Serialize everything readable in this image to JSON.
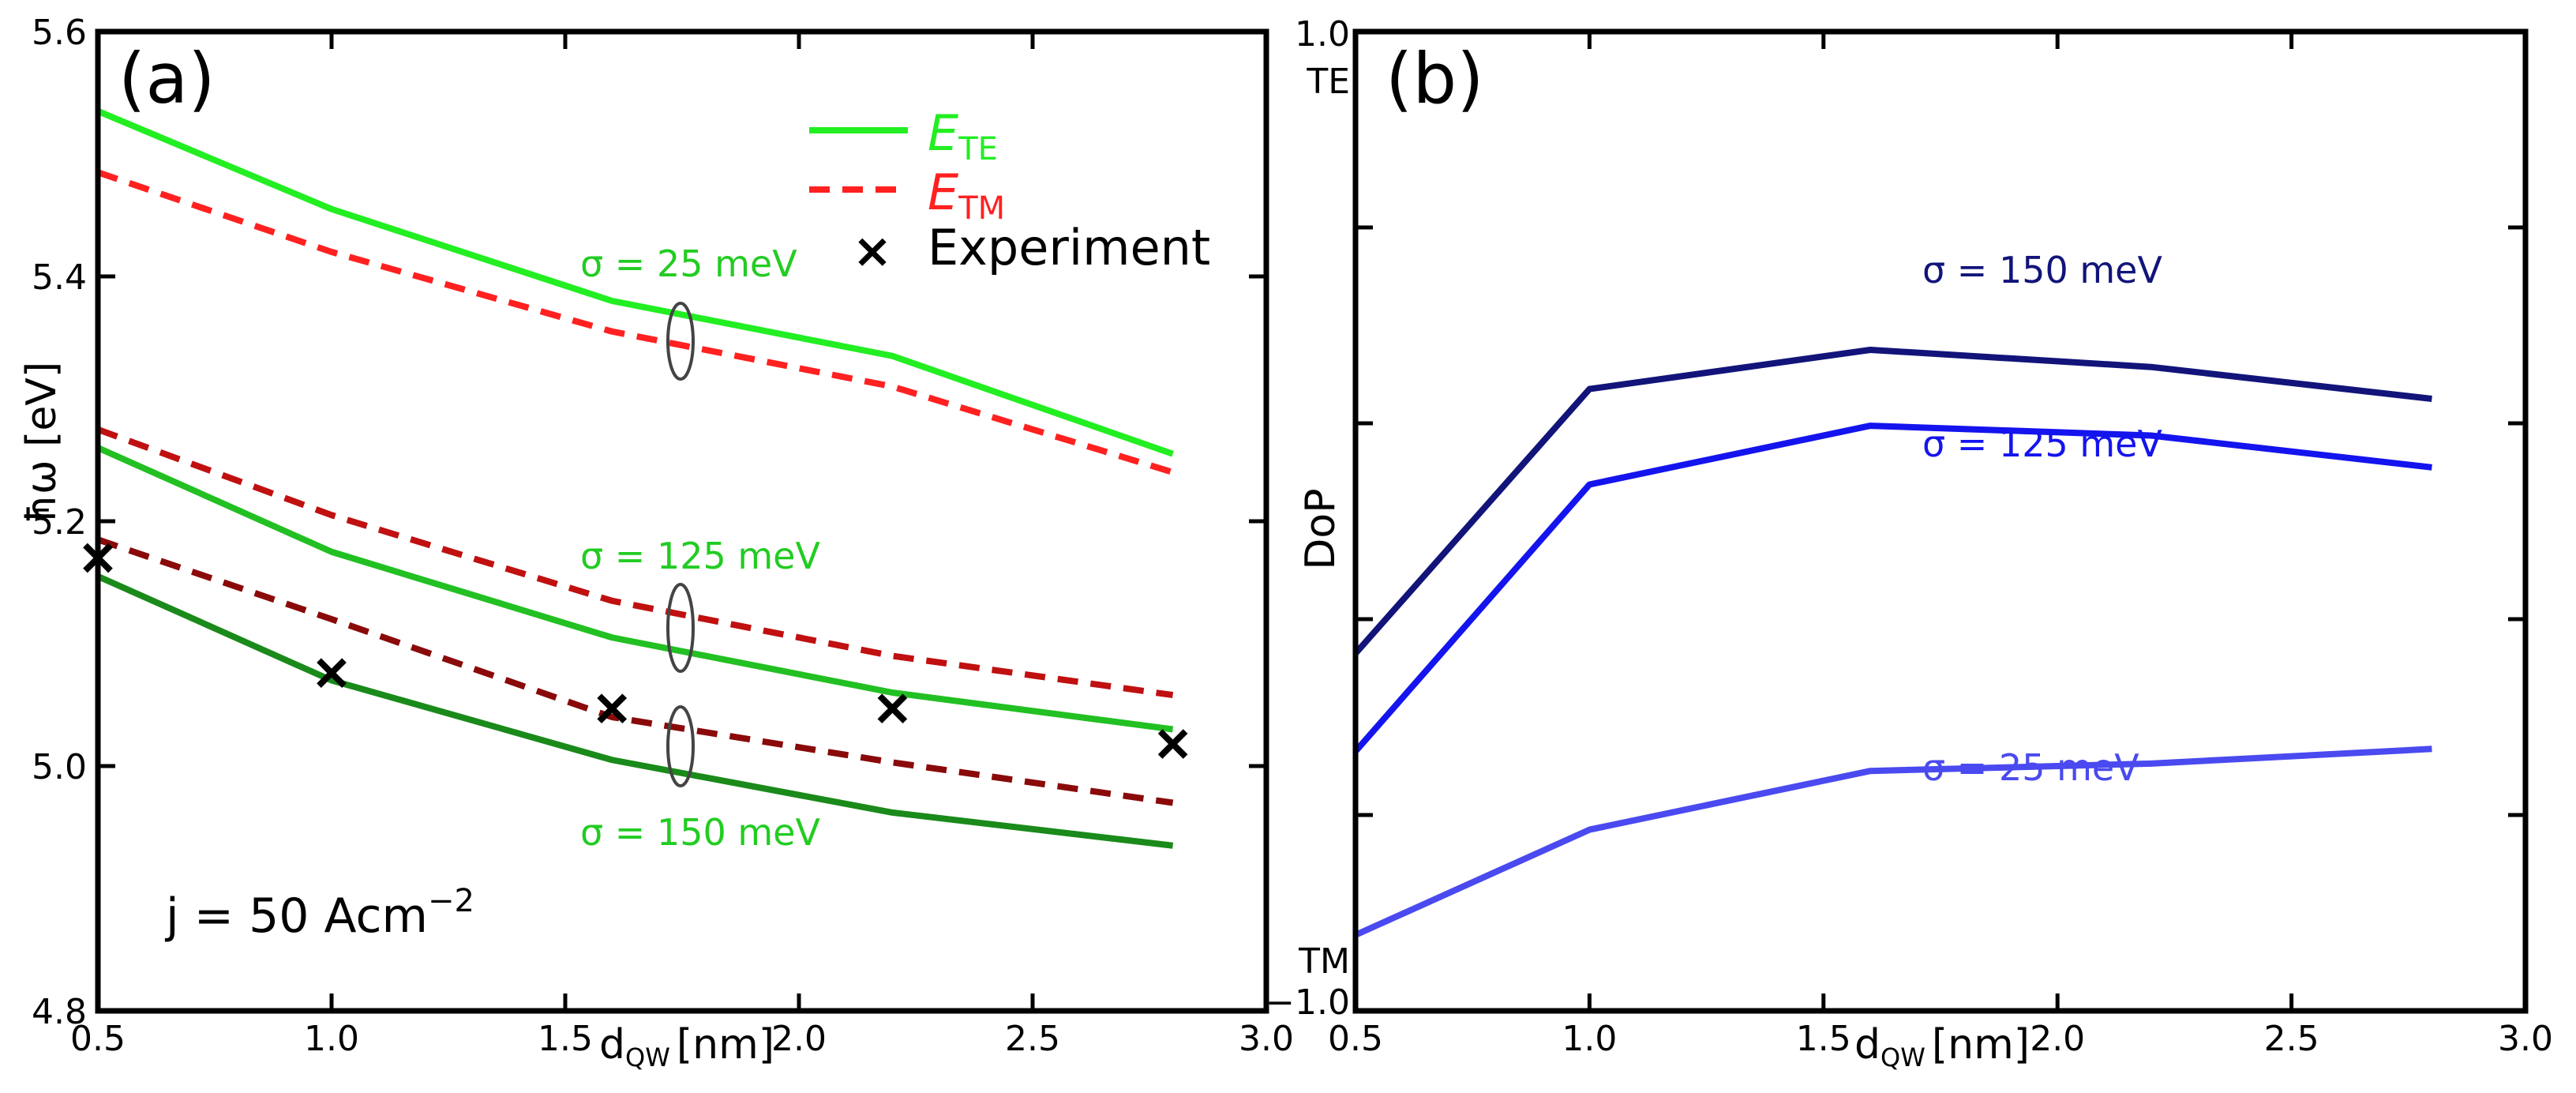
{
  "chart_data": [
    {
      "id": "a",
      "type": "line",
      "panel_label": "(a)",
      "xlabel_main": "d",
      "xlabel_sub": "QW",
      "xlabel_unit": "[nm]",
      "ylabel": "ħω [eV]",
      "xlim": [
        0.5,
        3.0
      ],
      "ylim": [
        4.8,
        5.6
      ],
      "xticks": [
        0.5,
        1.0,
        1.5,
        2.0,
        2.5,
        3.0
      ],
      "xtick_labels": [
        "0.5",
        "1.0",
        "1.5",
        "2.0",
        "2.5",
        "3.0"
      ],
      "yticks": [
        4.8,
        5.0,
        5.2,
        5.4,
        5.6
      ],
      "ytick_labels": [
        "4.8",
        "5.0",
        "5.2",
        "5.4",
        "5.6"
      ],
      "x": [
        0.5,
        1.0,
        1.6,
        2.2,
        2.8
      ],
      "series": [
        {
          "key": "te25",
          "style": "solid",
          "color": "#22ee22",
          "values": [
            5.535,
            5.455,
            5.38,
            5.335,
            5.255
          ]
        },
        {
          "key": "tm25",
          "style": "dashed",
          "color": "#ff2020",
          "values": [
            5.485,
            5.42,
            5.355,
            5.31,
            5.24
          ]
        },
        {
          "key": "te125",
          "style": "solid",
          "color": "#22c022",
          "values": [
            5.26,
            5.175,
            5.105,
            5.06,
            5.03
          ]
        },
        {
          "key": "tm125",
          "style": "dashed",
          "color": "#c01010",
          "values": [
            5.275,
            5.205,
            5.135,
            5.09,
            5.058
          ]
        },
        {
          "key": "te150",
          "style": "solid",
          "color": "#1a8a1a",
          "values": [
            5.155,
            5.07,
            5.005,
            4.962,
            4.935
          ]
        },
        {
          "key": "tm150",
          "style": "dashed",
          "color": "#8a0a0a",
          "values": [
            5.185,
            5.12,
            5.04,
            5.003,
            4.97
          ]
        }
      ],
      "experiment": {
        "x": [
          0.5,
          1.0,
          1.6,
          2.2,
          2.8
        ],
        "y": [
          5.17,
          5.076,
          5.047,
          5.047,
          5.018
        ]
      },
      "legend": {
        "te_main": "E",
        "te_sub": "TE",
        "tm_main": "E",
        "tm_sub": "TM",
        "exp_label": "Experiment",
        "te_color": "#22ee22",
        "tm_color": "#ff2020"
      },
      "annotations": {
        "sigma25": "σ = 25 meV",
        "sigma125": "σ = 125 meV",
        "sigma150": "σ = 150 meV",
        "current": "j = 50 Acm",
        "current_exp": "−2",
        "label_color": "#22cc22"
      }
    },
    {
      "id": "b",
      "type": "line",
      "panel_label": "(b)",
      "xlabel_main": "d",
      "xlabel_sub": "QW",
      "xlabel_unit": "[nm]",
      "ylabel": "DoP",
      "xlim": [
        0.5,
        3.0
      ],
      "ylim": [
        -1.0,
        1.0
      ],
      "xticks": [
        0.5,
        1.0,
        1.5,
        2.0,
        2.5,
        3.0
      ],
      "xtick_labels": [
        "0.5",
        "1.0",
        "1.5",
        "2.0",
        "2.5",
        "3.0"
      ],
      "yticks": [
        -1.0,
        -0.6,
        -0.2,
        0.2,
        0.6,
        1.0
      ],
      "ytick_labels_top": [
        "1.0",
        "TE"
      ],
      "ytick_labels_bottom": [
        "TM",
        "−1.0"
      ],
      "x": [
        0.5,
        1.0,
        1.6,
        2.2,
        2.8
      ],
      "series": [
        {
          "key": "s150",
          "name": "σ = 150 meV",
          "color": "#12147a",
          "values": [
            -0.27,
            0.27,
            0.35,
            0.315,
            0.25
          ]
        },
        {
          "key": "s125",
          "name": "σ = 125 meV",
          "color": "#1414ee",
          "values": [
            -0.47,
            0.075,
            0.195,
            0.175,
            0.11
          ]
        },
        {
          "key": "s25",
          "name": "σ = 25 meV",
          "color": "#4a4af0",
          "values": [
            -0.845,
            -0.63,
            -0.51,
            -0.495,
            -0.465
          ]
        }
      ]
    }
  ]
}
